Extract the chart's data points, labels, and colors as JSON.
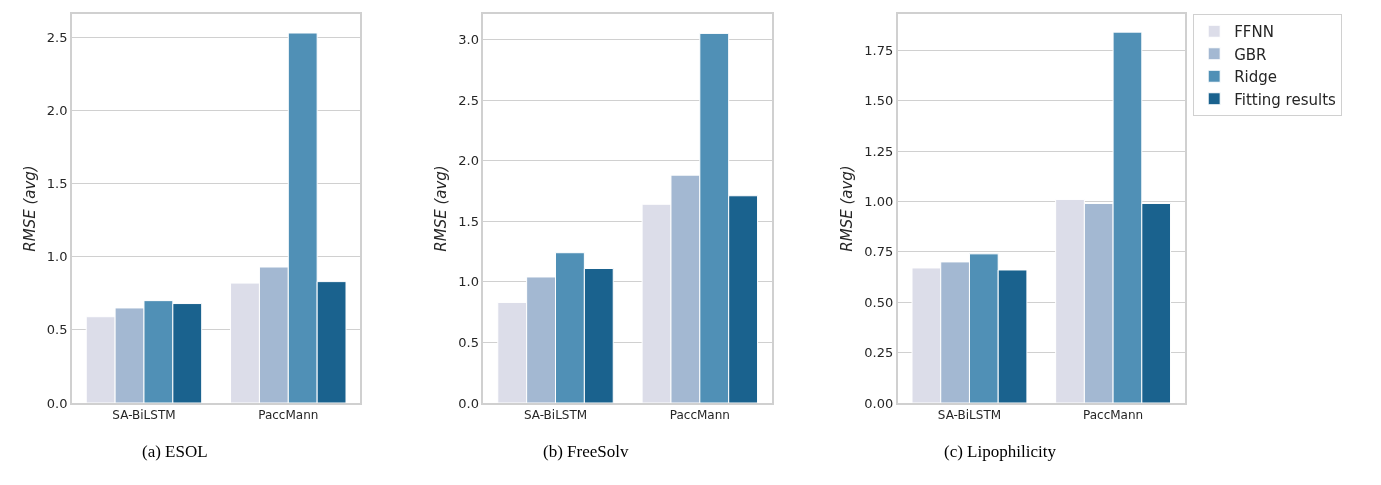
{
  "chart_data": [
    {
      "type": "bar",
      "title": "(a) ESOL",
      "ylabel": "RMSE (avg)",
      "categories": [
        "SA-BiLSTM",
        "PaccMann"
      ],
      "series": [
        {
          "color": "#dcdde9",
          "values": [
            0.59,
            0.82
          ]
        },
        {
          "color": "#a3b8d2",
          "values": [
            0.65,
            0.93
          ]
        },
        {
          "color": "#5090b6",
          "values": [
            0.7,
            2.53
          ]
        },
        {
          "color": "#1a628e",
          "values": [
            0.68,
            0.83
          ]
        }
      ],
      "ylim": [
        0,
        2.66
      ],
      "yticks": [
        {
          "value": 0,
          "label": "0.0"
        },
        0.5,
        {
          "value": 1,
          "label": "1.0"
        },
        1.5,
        {
          "value": 2,
          "label": "2.0"
        },
        2.5
      ],
      "grid": "y"
    },
    {
      "type": "bar",
      "title": "(b) FreeSolv",
      "ylabel": "RMSE (avg)",
      "categories": [
        "SA-BiLSTM",
        "PaccMann"
      ],
      "series": [
        {
          "color": "#dcdde9",
          "values": [
            0.83,
            1.64
          ]
        },
        {
          "color": "#a3b8d2",
          "values": [
            1.04,
            1.88
          ]
        },
        {
          "color": "#5090b6",
          "values": [
            1.24,
            3.05
          ]
        },
        {
          "color": "#1a628e",
          "values": [
            1.11,
            1.71
          ]
        }
      ],
      "ylim": [
        0,
        3.21
      ],
      "yticks": [
        {
          "value": 0,
          "label": "0.0"
        },
        0.5,
        {
          "value": 1,
          "label": "1.0"
        },
        1.5,
        {
          "value": 2,
          "label": "2.0"
        },
        2.5,
        {
          "value": 3,
          "label": "3.0"
        }
      ],
      "grid": "y"
    },
    {
      "type": "bar",
      "title": "(c) Lipophilicity",
      "ylabel": "RMSE (avg)",
      "categories": [
        "SA-BiLSTM",
        "PaccMann"
      ],
      "series": [
        {
          "name": "FFNN",
          "color": "#dcdde9",
          "values": [
            0.67,
            1.01
          ]
        },
        {
          "name": "GBR",
          "color": "#a3b8d2",
          "values": [
            0.7,
            0.99
          ]
        },
        {
          "name": "Ridge",
          "color": "#5090b6",
          "values": [
            0.74,
            1.84
          ]
        },
        {
          "name": "Fitting results",
          "color": "#1a628e",
          "values": [
            0.66,
            0.99
          ]
        }
      ],
      "ylim": [
        0,
        1.93
      ],
      "yticks": [
        {
          "value": 0,
          "label": "0.00"
        },
        0.25,
        {
          "value": 0.5,
          "label": "0.50"
        },
        0.75,
        {
          "value": 1,
          "label": "1.00"
        },
        1.25,
        {
          "value": 1.5,
          "label": "1.50"
        },
        1.75
      ],
      "grid": "y",
      "legend": "top right"
    }
  ]
}
